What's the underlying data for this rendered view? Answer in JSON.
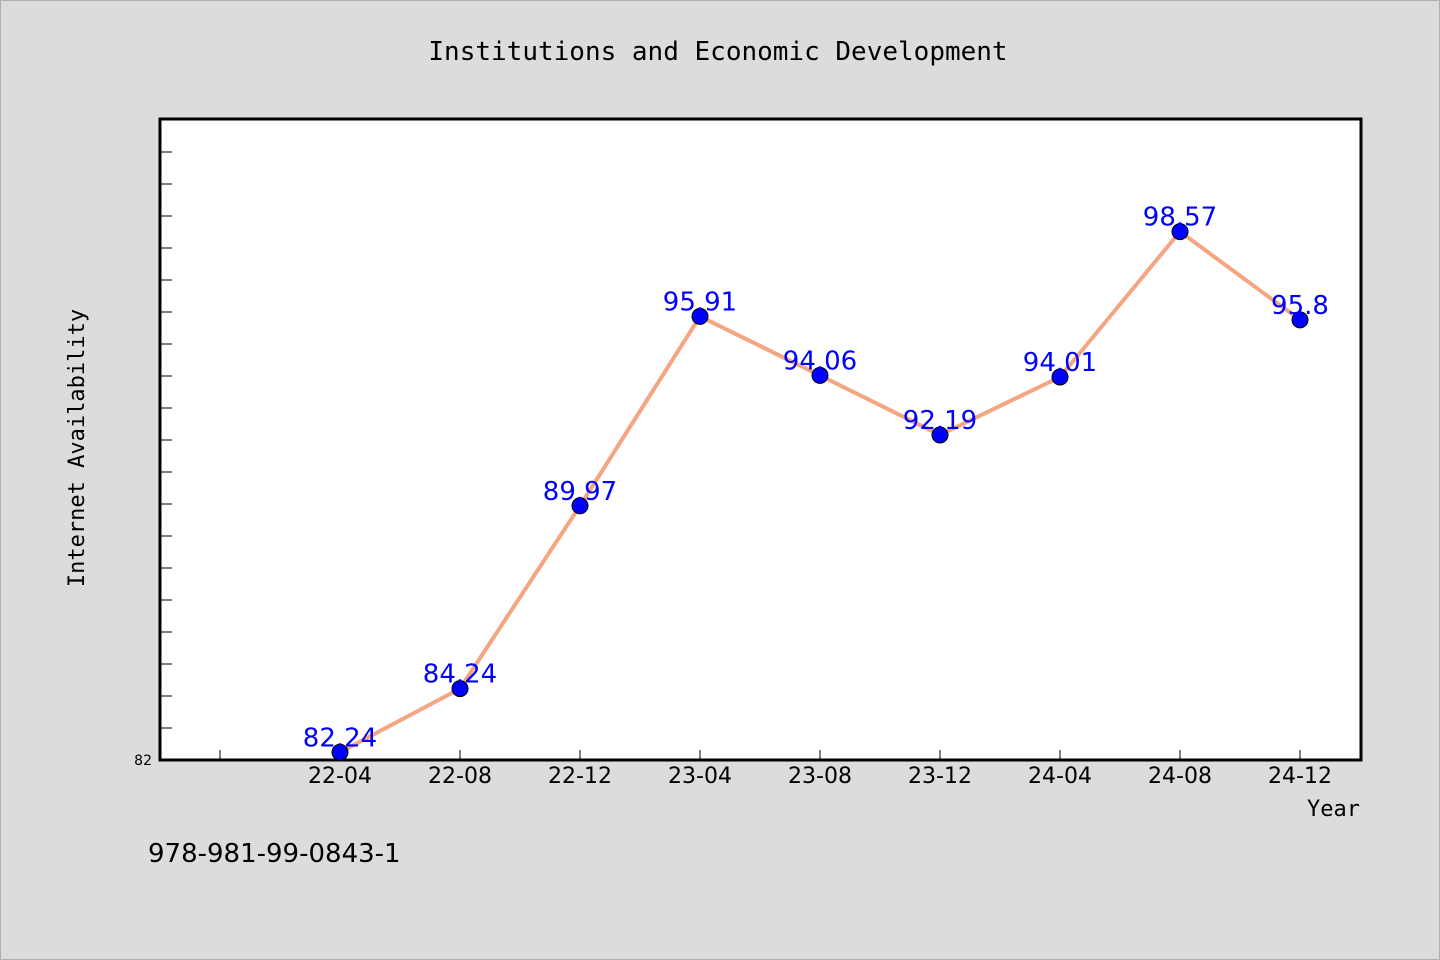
{
  "chart_data": {
    "type": "line",
    "title": "Institutions and Economic Development",
    "xlabel": "Year",
    "ylabel": "Internet Availability",
    "categories": [
      "22-04",
      "22-08",
      "22-12",
      "23-04",
      "23-08",
      "23-12",
      "24-04",
      "24-08",
      "24-12"
    ],
    "series": [
      {
        "values": [
          82.24,
          84.24,
          89.97,
          95.91,
          94.06,
          92.19,
          94.01,
          98.57,
          95.8
        ],
        "data_labels": [
          "82.24",
          "84.24",
          "89.97",
          "95.91",
          "94.06",
          "92.19",
          "94.01",
          "98.57",
          "95.8"
        ],
        "line_color": "#f4a582",
        "marker_color": "#0000ff",
        "label_color": "#0000ff"
      }
    ],
    "ylim": [
      82,
      102.1
    ],
    "yticks": [
      82
    ],
    "ytick_labels": [
      "82"
    ],
    "grid": false,
    "legend": "none"
  },
  "footer": {
    "text": "978-981-99-0843-1"
  }
}
